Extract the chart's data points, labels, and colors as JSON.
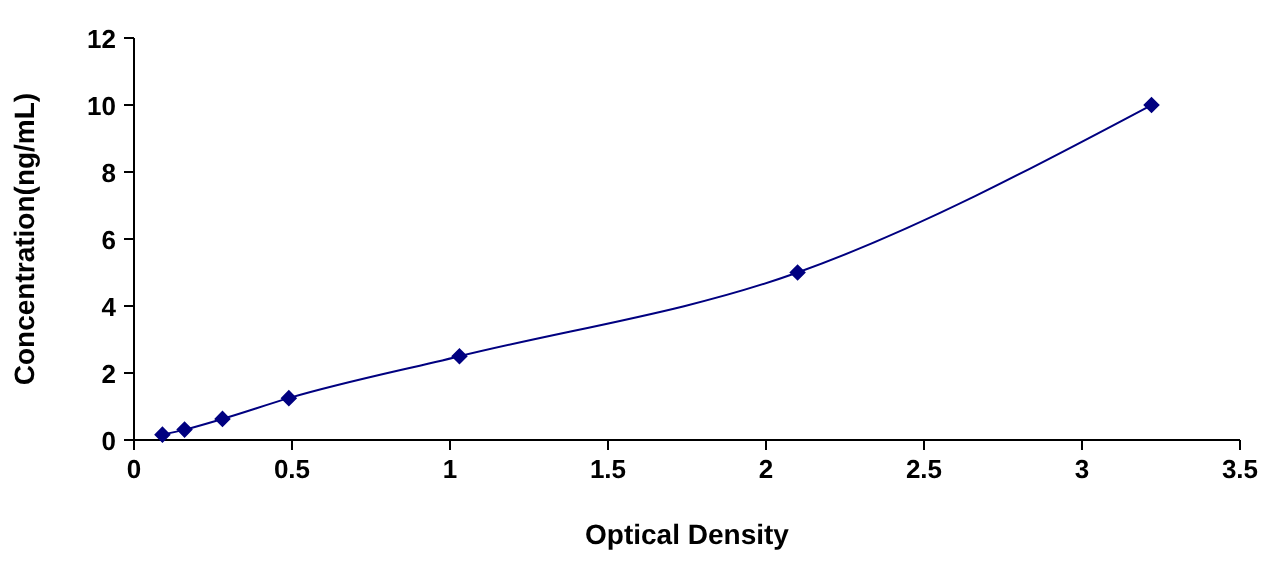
{
  "chart_data": {
    "type": "line",
    "xlabel": "Optical Density",
    "ylabel": "Concentration(ng/mL)",
    "series": [
      {
        "color": "#000080",
        "x": [
          0.09,
          0.16,
          0.28,
          0.49,
          1.03,
          2.1,
          3.22
        ],
        "values": [
          0.16,
          0.31,
          0.63,
          1.25,
          2.5,
          5,
          10
        ]
      }
    ],
    "xlim": [
      0,
      3.5
    ],
    "xticks": [
      0,
      0.5,
      1,
      1.5,
      2,
      2.5,
      3,
      3.5
    ],
    "ylim": [
      0,
      12
    ],
    "yticks": [
      0,
      2,
      4,
      6,
      8,
      10,
      12
    ],
    "grid": false,
    "marker": "diamond",
    "line_style": "solid"
  }
}
